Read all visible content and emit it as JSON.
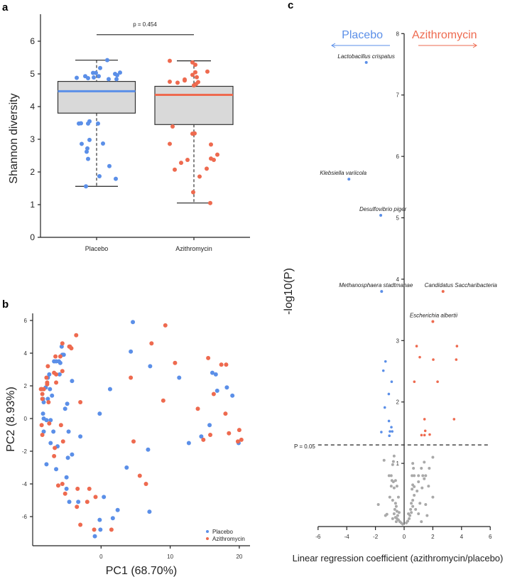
{
  "colors": {
    "placebo": "#5B8FE8",
    "azithromycin": "#EE6A4F",
    "nonsig": "#A9A9A9",
    "box": "#D9D9D9"
  },
  "chart_data": [
    {
      "panel": "a",
      "type": "box",
      "ylabel": "Shannon diversity",
      "ylim": [
        0,
        6.8
      ],
      "yticks": [
        "0",
        "1",
        "2",
        "3",
        "4",
        "5",
        "6"
      ],
      "categories": [
        "Placebo",
        "Azithromycin"
      ],
      "annotation": "p = 0.454",
      "boxes": [
        {
          "name": "Placebo",
          "q1": 3.8,
          "median": 4.47,
          "q3": 4.77,
          "whisker_low": 1.56,
          "whisker_high": 5.42,
          "points": [
            4.88,
            4.93,
            4.87,
            5.03,
            4.89,
            5.03,
            4.93,
            5.18,
            5.42,
            4.84,
            5.0,
            4.84,
            4.96,
            5.04,
            3.48,
            3.49,
            3.48,
            3.55,
            3.48,
            2.86,
            2.98,
            2.87,
            2.72,
            2.62,
            2.4,
            2.18,
            1.87,
            1.79,
            1.56
          ]
        },
        {
          "name": "Azithromycin",
          "q1": 3.45,
          "median": 4.36,
          "q3": 4.62,
          "whisker_low": 1.05,
          "whisker_high": 5.4,
          "points": [
            5.4,
            5.35,
            5.28,
            5.05,
            5.07,
            4.97,
            4.9,
            4.76,
            4.73,
            4.8,
            4.83,
            4.75,
            4.69,
            4.65,
            3.39,
            3.17,
            3.18,
            2.86,
            2.84,
            2.28,
            2.37,
            2.07,
            2.1,
            2.41,
            2.37,
            2.53,
            1.86,
            1.38,
            1.05
          ]
        }
      ]
    },
    {
      "panel": "b",
      "type": "scatter",
      "xlabel": "PC1 (68.70%)",
      "ylabel": "PC2 (8.93%)",
      "xlim": [
        -10,
        21.5
      ],
      "ylim": [
        -7.8,
        6.6
      ],
      "xticks": [
        "0",
        "10",
        "20"
      ],
      "yticks": [
        "6",
        "4",
        "2",
        "0",
        "-2",
        "-4",
        "-6"
      ],
      "legend": {
        "position": "bottom-right",
        "entries": [
          "Placebo",
          "Azithromycin"
        ]
      },
      "series": [
        {
          "name": "Placebo",
          "points": [
            [
              4.6,
              5.9
            ],
            [
              4.3,
              4.1
            ],
            [
              7.1,
              3.2
            ],
            [
              11.3,
              2.5
            ],
            [
              1.3,
              1.8
            ],
            [
              -0.2,
              0.3
            ],
            [
              16.1,
              2.8
            ],
            [
              16.6,
              2.7
            ],
            [
              16.8,
              1.7
            ],
            [
              18.2,
              1.9
            ],
            [
              19.0,
              1.4
            ],
            [
              15.7,
              -0.4
            ],
            [
              14.5,
              -1.1
            ],
            [
              12.7,
              -1.5
            ],
            [
              19.9,
              -1.5
            ],
            [
              6.8,
              -1.9
            ],
            [
              3.7,
              -3.0
            ],
            [
              7.0,
              -5.7
            ],
            [
              2.4,
              -5.6
            ],
            [
              1.7,
              -6.1
            ],
            [
              0.4,
              -4.8
            ],
            [
              -0.2,
              -6.2
            ],
            [
              -0.1,
              -6.8
            ],
            [
              -0.9,
              -7.2
            ],
            [
              -3.3,
              -5.1
            ],
            [
              -4.6,
              -5.1
            ],
            [
              -5.0,
              -4.3
            ],
            [
              -5.0,
              -3.6
            ],
            [
              -4.8,
              -2.4
            ],
            [
              -4.2,
              -2.2
            ],
            [
              -6.3,
              -1.7
            ],
            [
              -7.3,
              -1.5
            ],
            [
              -6.5,
              -3.1
            ],
            [
              -7.9,
              -2.8
            ],
            [
              -6.9,
              -0.8
            ],
            [
              -4.7,
              -0.8
            ],
            [
              -3.0,
              -1.1
            ],
            [
              -8.3,
              -0.8
            ],
            [
              -8.3,
              0.0
            ],
            [
              -7.9,
              -0.1
            ],
            [
              -7.3,
              -0.1
            ],
            [
              -8.4,
              0.3
            ],
            [
              -8.3,
              1.0
            ],
            [
              -8.4,
              1.2
            ],
            [
              -7.7,
              1.2
            ],
            [
              -7.1,
              1.4
            ],
            [
              -7.4,
              1.8
            ],
            [
              -8.0,
              1.9
            ],
            [
              -7.7,
              2.5
            ],
            [
              -7.5,
              2.7
            ],
            [
              -6.8,
              3.5
            ],
            [
              -6.5,
              3.5
            ],
            [
              -6.1,
              3.5
            ],
            [
              -5.9,
              3.4
            ],
            [
              -6.0,
              2.7
            ],
            [
              -5.6,
              3.9
            ],
            [
              -5.4,
              3.9
            ],
            [
              -5.7,
              4.4
            ],
            [
              -4.2,
              2.3
            ],
            [
              -4.9,
              0.9
            ],
            [
              -5.2,
              0.6
            ]
          ]
        },
        {
          "name": "Azithromycin",
          "points": [
            [
              9.3,
              5.7
            ],
            [
              7.3,
              4.6
            ],
            [
              10.7,
              3.4
            ],
            [
              4.3,
              2.5
            ],
            [
              9.0,
              1.1
            ],
            [
              15.5,
              3.7
            ],
            [
              17.4,
              3.3
            ],
            [
              18.1,
              3.3
            ],
            [
              16.3,
              1.5
            ],
            [
              14.0,
              0.6
            ],
            [
              18.0,
              0.3
            ],
            [
              20.0,
              -0.7
            ],
            [
              18.5,
              -0.9
            ],
            [
              15.8,
              -1.0
            ],
            [
              14.8,
              -1.3
            ],
            [
              19.8,
              -1.4
            ],
            [
              20.3,
              -1.3
            ],
            [
              4.7,
              -1.4
            ],
            [
              5.6,
              -3.5
            ],
            [
              6.5,
              -4.0
            ],
            [
              1.5,
              -6.8
            ],
            [
              -1.0,
              -6.8
            ],
            [
              -3.0,
              -6.5
            ],
            [
              -3.5,
              -5.4
            ],
            [
              -2.0,
              -5.1
            ],
            [
              -0.8,
              -4.8
            ],
            [
              -1.7,
              -4.3
            ],
            [
              -3.4,
              -4.3
            ],
            [
              -5.2,
              -4.6
            ],
            [
              -5.6,
              -4.0
            ],
            [
              -6.2,
              -4.1
            ],
            [
              -6.8,
              -2.3
            ],
            [
              -6.7,
              -1.8
            ],
            [
              -5.5,
              -1.4
            ],
            [
              -5.8,
              -0.4
            ],
            [
              -7.5,
              -0.3
            ],
            [
              -8.6,
              -0.4
            ],
            [
              -8.5,
              -1.0
            ],
            [
              -3.0,
              1.0
            ],
            [
              -7.6,
              1.0
            ],
            [
              -8.5,
              1.2
            ],
            [
              -8.5,
              1.5
            ],
            [
              -8.6,
              1.8
            ],
            [
              -8.7,
              1.8
            ],
            [
              -8.3,
              1.8
            ],
            [
              -7.8,
              2.1
            ],
            [
              -7.8,
              2.2
            ],
            [
              -7.9,
              2.5
            ],
            [
              -6.5,
              2.2
            ],
            [
              -6.5,
              2.7
            ],
            [
              -6.8,
              2.8
            ],
            [
              -5.6,
              2.9
            ],
            [
              -7.7,
              3.2
            ],
            [
              -6.6,
              3.8
            ],
            [
              -5.9,
              3.8
            ],
            [
              -5.6,
              4.6
            ],
            [
              -4.6,
              4.4
            ],
            [
              -4.5,
              4.4
            ],
            [
              -4.3,
              4.3
            ],
            [
              -3.6,
              5.1
            ]
          ]
        }
      ]
    },
    {
      "panel": "c",
      "type": "scatter",
      "xlabel": "Linear regression coefficient (azithromycin/placebo)",
      "ylabel": "-log10(P)",
      "xlim": [
        -6,
        6
      ],
      "ylim": [
        0,
        8
      ],
      "xticks": [
        "-6",
        "-4",
        "-2",
        "0",
        "2",
        "4",
        "6"
      ],
      "yticks": [
        "1",
        "2",
        "3",
        "4",
        "5",
        "6",
        "7",
        "8"
      ],
      "threshold": {
        "value": 1.301,
        "label": "P = 0.05"
      },
      "direction_labels": {
        "left": "Placebo",
        "right": "Azithromycin"
      },
      "labeled_points": [
        {
          "name": "Lactobacillus crispatus",
          "x": -2.64,
          "y": 7.53,
          "group": "placebo"
        },
        {
          "name": "Klebsiella variicola",
          "x": -3.85,
          "y": 5.63,
          "group": "placebo"
        },
        {
          "name": "Desulfovibrio piger",
          "x": -1.63,
          "y": 5.04,
          "group": "placebo"
        },
        {
          "name": "Methanosphaera stadtmanae",
          "x": -1.57,
          "y": 3.8,
          "group": "placebo"
        },
        {
          "name": "Candidatus Saccharibacteria",
          "x": 2.71,
          "y": 3.8,
          "group": "azithromycin"
        },
        {
          "name": "Escherichia albertii",
          "x": 2.0,
          "y": 3.31,
          "group": "azithromycin"
        }
      ],
      "series": [
        {
          "name": "Placebo",
          "points": [
            [
              -1.3,
              2.66
            ],
            [
              -1.45,
              2.51
            ],
            [
              -0.87,
              2.33
            ],
            [
              -1.07,
              2.13
            ],
            [
              -1.35,
              1.91
            ],
            [
              -1.06,
              1.69
            ],
            [
              -0.89,
              1.59
            ],
            [
              -0.99,
              1.52
            ],
            [
              -0.83,
              1.52
            ],
            [
              -1.59,
              1.51
            ],
            [
              -1.03,
              1.45
            ]
          ]
        },
        {
          "name": "Azithromycin",
          "points": [
            [
              0.87,
              2.91
            ],
            [
              3.68,
              2.91
            ],
            [
              1.09,
              2.73
            ],
            [
              2.03,
              2.69
            ],
            [
              3.63,
              2.69
            ],
            [
              0.71,
              2.33
            ],
            [
              2.33,
              2.33
            ],
            [
              1.42,
              1.72
            ],
            [
              3.48,
              1.72
            ],
            [
              1.47,
              1.53
            ],
            [
              1.21,
              1.46
            ],
            [
              1.42,
              1.46
            ],
            [
              1.78,
              1.47
            ]
          ]
        },
        {
          "name": "Not significant",
          "points": [
            [
              -1.8,
              0.33
            ],
            [
              -1.3,
              0.15
            ],
            [
              -1.2,
              0.17
            ],
            [
              -1.4,
              1.05
            ],
            [
              -0.7,
              1.12
            ],
            [
              -0.75,
              1.03
            ],
            [
              -0.8,
              0.98
            ],
            [
              -1.05,
              0.8
            ],
            [
              -0.9,
              0.8
            ],
            [
              -0.85,
              0.72
            ],
            [
              -0.75,
              0.7
            ],
            [
              -0.6,
              0.72
            ],
            [
              -0.5,
              0.63
            ],
            [
              -0.9,
              0.63
            ],
            [
              -0.7,
              0.6
            ],
            [
              -1.0,
              0.45
            ],
            [
              -0.4,
              0.45
            ],
            [
              -0.8,
              0.4
            ],
            [
              -0.6,
              0.35
            ],
            [
              -0.55,
              0.3
            ],
            [
              -0.65,
              0.25
            ],
            [
              -0.5,
              0.22
            ],
            [
              -0.7,
              0.18
            ],
            [
              -0.45,
              0.15
            ],
            [
              -0.6,
              0.12
            ],
            [
              -0.5,
              0.1
            ],
            [
              -0.4,
              0.08
            ],
            [
              -0.3,
              0.05
            ],
            [
              -0.2,
              0.03
            ],
            [
              -0.1,
              0.01
            ],
            [
              -0.35,
              0.2
            ],
            [
              -0.55,
              0.05
            ],
            [
              -0.8,
              0.1
            ],
            [
              0.6,
              1.0
            ],
            [
              0.65,
              0.92
            ],
            [
              1.2,
              0.92
            ],
            [
              1.4,
              1.02
            ],
            [
              2.0,
              1.1
            ],
            [
              1.75,
              0.92
            ],
            [
              0.55,
              0.8
            ],
            [
              0.7,
              0.8
            ],
            [
              1.0,
              0.8
            ],
            [
              1.3,
              0.8
            ],
            [
              1.5,
              0.8
            ],
            [
              1.4,
              0.75
            ],
            [
              0.6,
              0.65
            ],
            [
              0.7,
              0.62
            ],
            [
              0.55,
              0.58
            ],
            [
              1.0,
              0.7
            ],
            [
              1.25,
              0.6
            ],
            [
              0.9,
              0.55
            ],
            [
              1.7,
              0.63
            ],
            [
              0.7,
              0.48
            ],
            [
              0.6,
              0.4
            ],
            [
              0.5,
              0.35
            ],
            [
              0.6,
              0.3
            ],
            [
              0.45,
              0.25
            ],
            [
              0.5,
              0.2
            ],
            [
              0.4,
              0.15
            ],
            [
              0.35,
              0.1
            ],
            [
              0.25,
              0.06
            ],
            [
              0.15,
              0.03
            ],
            [
              1.1,
              0.35
            ],
            [
              1.5,
              0.33
            ],
            [
              1.6,
              0.15
            ],
            [
              1.2,
              0.05
            ],
            [
              1.0,
              0.18
            ],
            [
              2.0,
              0.45
            ],
            [
              0.3,
              0.18
            ],
            [
              0.8,
              0.25
            ]
          ]
        }
      ]
    }
  ]
}
